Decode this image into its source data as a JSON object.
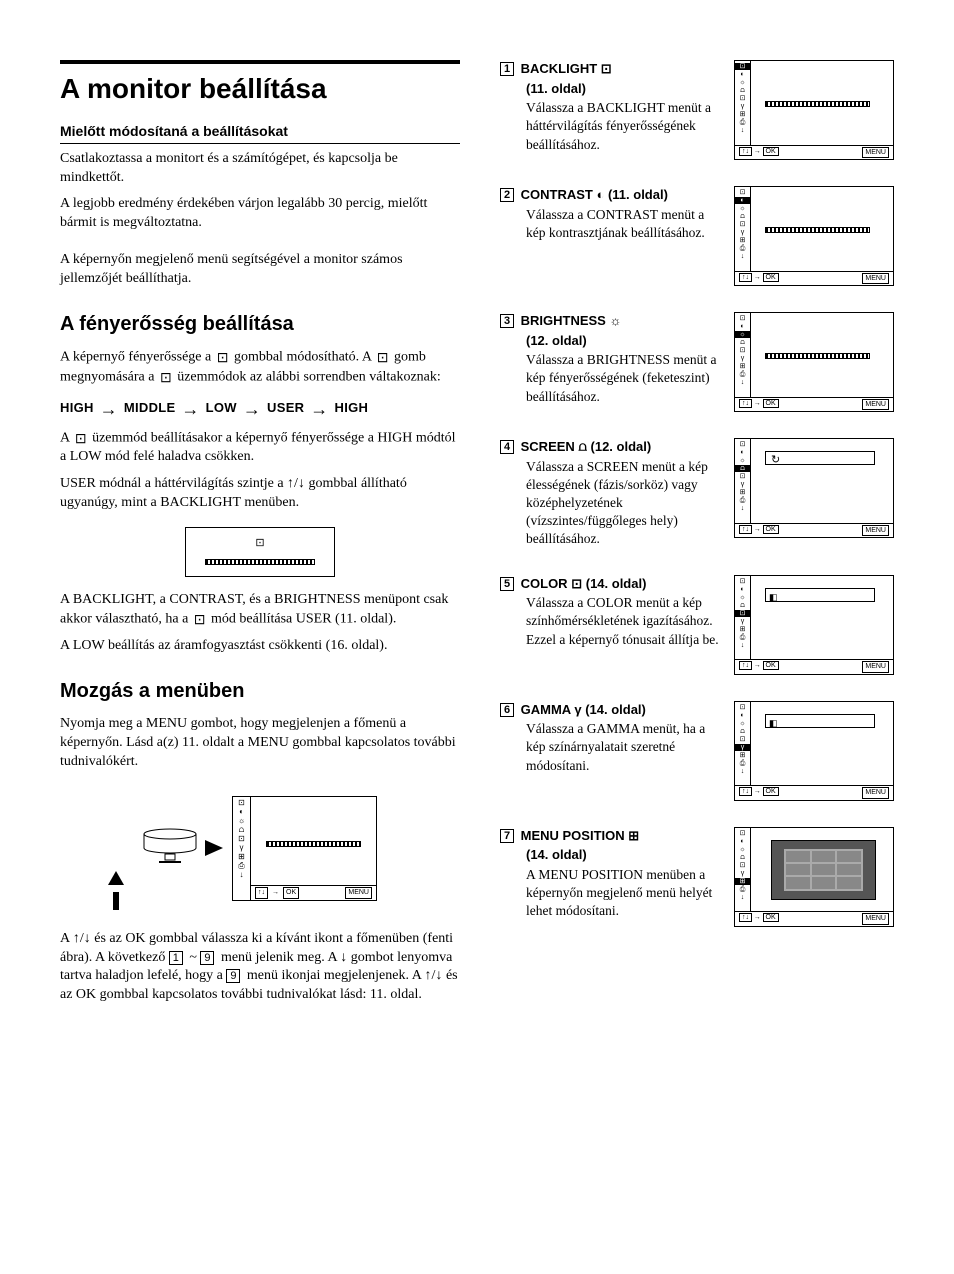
{
  "left": {
    "title": "A monitor beállítása",
    "before_h": "Mielőtt módosítaná a beállításokat",
    "before_p1": "Csatlakoztassa a monitort és a számítógépet, és kapcsolja be mindkettőt.",
    "before_p2": "A legjobb eredmény érdekében várjon legalább 30 percig, mielőtt bármit is megváltoztatna.",
    "intro_p": "A képernyőn megjelenő menü segítségével a monitor számos jellemzőjét beállíthatja.",
    "bright_h": "A fényerősség beállítása",
    "bright_p1_a": "A képernyő fényerőssége a ",
    "bright_p1_b": " gombbal módosítható. A ",
    "bright_p1_c": " gomb megnyomására a ",
    "bright_p1_d": " üzemmódok az alábbi sorrendben váltakoznak:",
    "modes": {
      "a": "HIGH",
      "b": "MIDDLE",
      "c": "LOW",
      "d": "USER",
      "e": "HIGH"
    },
    "bright_p2_a": "A ",
    "bright_p2_b": " üzemmód beállításakor a képernyő fényerőssége a HIGH módtól a LOW mód felé haladva csökken.",
    "bright_p3": "USER módnál a háttérvilágítás szintje a ↑/↓ gombbal állítható ugyanúgy, mint a BACKLIGHT menüben.",
    "bright_p4_a": "A BACKLIGHT, a CONTRAST, és a BRIGHTNESS menüpont csak akkor választható, ha a ",
    "bright_p4_b": " mód beállítása USER (11. oldal).",
    "bright_p5": "A LOW beállítás az áramfogyasztást csökkenti (16. oldal).",
    "nav_h": "Mozgás a menüben",
    "nav_p1": "Nyomja meg a MENU gombot, hogy megjelenjen a főmenü a képernyőn. Lásd a(z) 11. oldalt a MENU gombbal kapcsolatos további tudnivalókért.",
    "nav_p2_a": "A ↑/↓ és az OK gombbal válassza ki a kívánt ikont a főmenüben (fenti ábra). A következő ",
    "nav_p2_b": " ~ ",
    "nav_p2_c": " menü jelenik meg. A ↓ gombot lenyomva tartva haladjon lefelé, hogy a ",
    "nav_p2_d": " menü ikonjai megjelenjenek. A ↑/↓ és az OK gombbal kapcsolatos további tudnivalókat lásd: 11. oldal.",
    "num1": "1",
    "num9": "9",
    "num9b": "9",
    "osd_foot": {
      "updown": "↑↓",
      "arrow": "→",
      "ok": "OK",
      "menu": "MENU"
    }
  },
  "items": [
    {
      "n": "1",
      "title": "BACKLIGHT",
      "icon": "backlight-icon",
      "page": "(11. oldal)",
      "body": "Válassza a BACKLIGHT menüt a háttérvilágítás fényerősségének beállításához.",
      "hl": 0,
      "variant": "bar"
    },
    {
      "n": "2",
      "title": "CONTRAST",
      "icon": "contrast-icon",
      "page": "(11. oldal)",
      "body": "Válassza a CONTRAST menüt a kép kontrasztjának beállításához.",
      "hl": 1,
      "variant": "bar",
      "pageInline": true
    },
    {
      "n": "3",
      "title": "BRIGHTNESS",
      "icon": "brightness-icon",
      "page": "(12. oldal)",
      "body": "Válassza a BRIGHTNESS menüt a kép fényerősségének (feketeszint) beállításához.",
      "hl": 2,
      "variant": "bar"
    },
    {
      "n": "4",
      "title": "SCREEN",
      "icon": "screen-icon",
      "page": "(12. oldal)",
      "body": "Válassza a SCREEN menüt a kép élességének (fázis/sorköz) vagy középhelyzetének (vízszintes/függőleges hely) beállításához.",
      "hl": 3,
      "variant": "screen",
      "pageInline": true
    },
    {
      "n": "5",
      "title": "COLOR",
      "icon": "color-icon",
      "page": "(14. oldal)",
      "body": "Válassza a COLOR menüt a kép színhőmérsékletének igazításához. Ezzel a képernyő tónusait állítja be.",
      "hl": 4,
      "variant": "color",
      "pageInline": true
    },
    {
      "n": "6",
      "title": "GAMMA",
      "icon": "gamma-icon",
      "page": "(14. oldal)",
      "body": "Válassza a GAMMA menüt, ha a kép színárnyalatait szeretné módosítani.",
      "hl": 5,
      "variant": "color",
      "pageInline": true
    },
    {
      "n": "7",
      "title": "MENU POSITION",
      "icon": "menu-position-icon",
      "page": "(14. oldal)",
      "body": "A MENU POSITION menüben a képernyőn megjelenő menü helyét lehet módosítani.",
      "hl": 6,
      "variant": "menupos"
    }
  ],
  "icons": {
    "side_glyphs": [
      "⊡",
      "◐",
      "☼",
      "⩍",
      "⊡",
      "γ",
      "⊞",
      "⎙",
      "↓"
    ],
    "backlight": "⊡",
    "contrast": "◐",
    "brightness": "☼",
    "screen": "⩍",
    "color": "⊡",
    "gamma": "γ",
    "menupos": "⊞"
  },
  "style": {
    "text_color": "#000000",
    "bg": "#ffffff",
    "body_fontsize": 14,
    "h1_fontsize": 28,
    "h2_fontsize": 20
  }
}
